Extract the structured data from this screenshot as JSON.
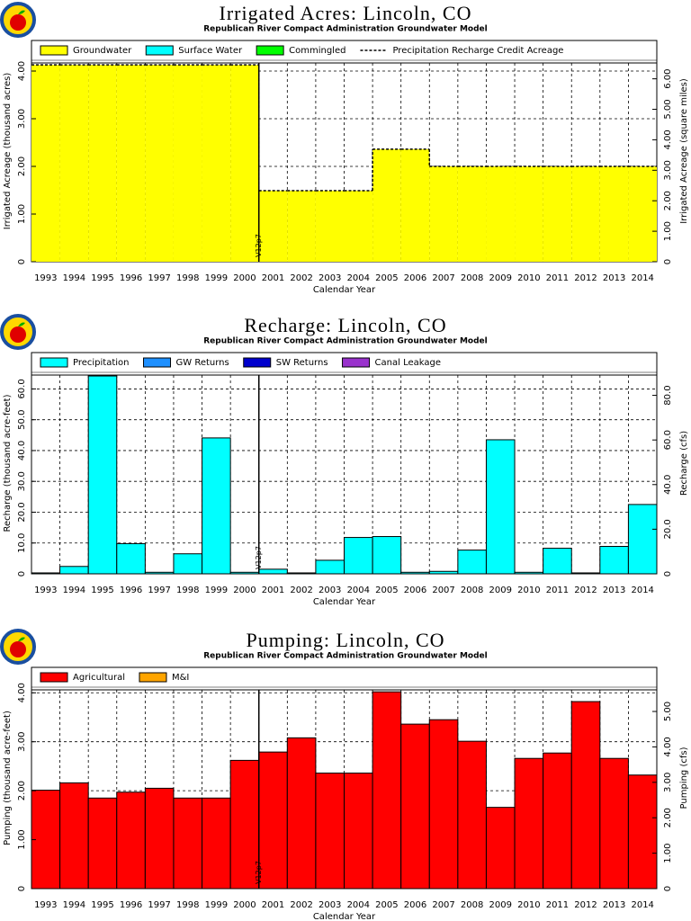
{
  "chart_data": [
    {
      "type": "area",
      "title": "Irrigated Acres: Lincoln, CO",
      "subtitle": "Republican River Compact Administration Groundwater Model",
      "ylabel": "Irrigated Acreage (thousand acres)",
      "y2label": "Irrigated Acreage (square miles)",
      "xlabel": "Calendar Year",
      "categories": [
        "1993",
        "1994",
        "1995",
        "1996",
        "1997",
        "1998",
        "1999",
        "2000",
        "2001",
        "2002",
        "2003",
        "2004",
        "2005",
        "2006",
        "2007",
        "2008",
        "2009",
        "2010",
        "2011",
        "2012",
        "2013",
        "2014"
      ],
      "series": [
        {
          "name": "Groundwater",
          "color": "#ffff00",
          "values": [
            4.13,
            4.13,
            4.13,
            4.13,
            4.13,
            4.13,
            4.13,
            4.13,
            1.49,
            1.49,
            1.49,
            1.49,
            2.36,
            2.36,
            2.0,
            2.0,
            2.0,
            2.0,
            2.0,
            2.0,
            2.0,
            2.0
          ]
        },
        {
          "name": "Surface Water",
          "color": "#00ffff",
          "values": [
            0,
            0,
            0,
            0,
            0,
            0,
            0,
            0,
            0,
            0,
            0,
            0,
            0,
            0,
            0,
            0,
            0,
            0,
            0,
            0,
            0,
            0
          ]
        },
        {
          "name": "Commingled",
          "color": "#00ff00",
          "values": [
            0,
            0,
            0,
            0,
            0,
            0,
            0,
            0,
            0,
            0,
            0,
            0,
            0,
            0,
            0,
            0,
            0,
            0,
            0,
            0,
            0,
            0
          ]
        },
        {
          "name": "Precipitation Recharge Credit Acreage",
          "type": "line",
          "line_style": "dashed",
          "color": "#000000",
          "values": [
            4.13,
            4.13,
            4.13,
            4.13,
            4.13,
            4.13,
            4.13,
            4.13,
            1.49,
            1.49,
            1.49,
            1.49,
            2.36,
            2.36,
            2.0,
            2.0,
            2.0,
            2.0,
            2.0,
            2.0,
            2.0,
            2.0
          ]
        }
      ],
      "ylim": [
        0,
        4.17
      ],
      "yticks": [
        0,
        {
          "value": 1,
          "label": "1.00"
        },
        {
          "value": 2,
          "label": "2.00"
        },
        {
          "value": 3,
          "label": "3.00"
        },
        {
          "value": 4,
          "label": "4.00"
        }
      ],
      "y2lim": [
        0,
        6.52
      ],
      "y2ticks": [
        0,
        {
          "value": 1,
          "label": "1.00"
        },
        {
          "value": 2,
          "label": "2.00"
        },
        {
          "value": 3,
          "label": "3.00"
        },
        {
          "value": 4,
          "label": "4.00"
        },
        {
          "value": 5,
          "label": "5.00"
        },
        {
          "value": 6,
          "label": "6.00"
        }
      ],
      "grid": true,
      "vline": {
        "label": "V12p7",
        "category": "2001"
      }
    },
    {
      "type": "bar",
      "title": "Recharge: Lincoln, CO",
      "subtitle": "Republican River Compact Administration Groundwater Model",
      "ylabel": "Recharge (thousand acre-feet)",
      "y2label": "Recharge (cfs)",
      "xlabel": "Calendar Year",
      "categories": [
        "1993",
        "1994",
        "1995",
        "1996",
        "1997",
        "1998",
        "1999",
        "2000",
        "2001",
        "2002",
        "2003",
        "2004",
        "2005",
        "2006",
        "2007",
        "2008",
        "2009",
        "2010",
        "2011",
        "2012",
        "2013",
        "2014"
      ],
      "series": [
        {
          "name": "Precipitation",
          "color": "#00ffff",
          "values": [
            0.3,
            2.4,
            64.2,
            9.8,
            0.5,
            6.5,
            44.1,
            0.5,
            1.5,
            0.3,
            4.4,
            11.8,
            12.1,
            0.5,
            0.8,
            7.7,
            43.5,
            0.5,
            8.3,
            0.3,
            8.9,
            22.5
          ]
        },
        {
          "name": "GW Returns",
          "color": "#1e90ff",
          "values": [
            0,
            0,
            0,
            0,
            0,
            0,
            0,
            0,
            0,
            0,
            0,
            0,
            0,
            0,
            0,
            0,
            0,
            0,
            0,
            0,
            0,
            0
          ]
        },
        {
          "name": "SW Returns",
          "color": "#0000cd",
          "values": [
            0,
            0,
            0,
            0,
            0,
            0,
            0,
            0,
            0,
            0,
            0,
            0,
            0,
            0,
            0,
            0,
            0,
            0,
            0,
            0,
            0,
            0
          ]
        },
        {
          "name": "Canal Leakage",
          "color": "#9932cc",
          "values": [
            0,
            0,
            0,
            0,
            0,
            0,
            0,
            0,
            0,
            0,
            0,
            0,
            0,
            0,
            0,
            0,
            0,
            0,
            0,
            0,
            0,
            0
          ]
        }
      ],
      "ylim": [
        0,
        64.5
      ],
      "yticks": [
        0,
        {
          "value": 10,
          "label": "10.0"
        },
        {
          "value": 20,
          "label": "20.0"
        },
        {
          "value": 30,
          "label": "30.0"
        },
        {
          "value": 40,
          "label": "40.0"
        },
        {
          "value": 50,
          "label": "50.0"
        },
        {
          "value": 60,
          "label": "60.0"
        }
      ],
      "y2lim": [
        0,
        89.1
      ],
      "y2ticks": [
        0,
        {
          "value": 20,
          "label": "20.0"
        },
        {
          "value": 40,
          "label": "40.0"
        },
        {
          "value": 60,
          "label": "60.0"
        },
        {
          "value": 80,
          "label": "80.0"
        }
      ],
      "grid": true,
      "vline": {
        "label": "V12p7",
        "category": "2001"
      }
    },
    {
      "type": "bar",
      "title": "Pumping: Lincoln, CO",
      "subtitle": "Republican River Compact Administration Groundwater Model",
      "ylabel": "Pumping (thousand acre-feet)",
      "y2label": "Pumping (cfs)",
      "xlabel": "Calendar Year",
      "categories": [
        "1993",
        "1994",
        "1995",
        "1996",
        "1997",
        "1998",
        "1999",
        "2000",
        "2001",
        "2002",
        "2003",
        "2004",
        "2005",
        "2006",
        "2007",
        "2008",
        "2009",
        "2010",
        "2011",
        "2012",
        "2013",
        "2014"
      ],
      "series": [
        {
          "name": "Agricultural",
          "color": "#ff0000",
          "values": [
            2.01,
            2.16,
            1.85,
            1.97,
            2.05,
            1.85,
            1.85,
            2.62,
            2.79,
            3.08,
            2.36,
            2.36,
            4.02,
            3.36,
            3.45,
            3.01,
            1.66,
            2.66,
            2.77,
            3.82,
            2.66,
            2.32
          ]
        },
        {
          "name": "M&I",
          "color": "#ffa500",
          "values": [
            0,
            0,
            0,
            0,
            0,
            0,
            0,
            0,
            0,
            0,
            0,
            0,
            0,
            0,
            0,
            0,
            0,
            0,
            0,
            0,
            0,
            0
          ]
        }
      ],
      "ylim": [
        0,
        4.06
      ],
      "yticks": [
        0,
        {
          "value": 1,
          "label": "1.00"
        },
        {
          "value": 2,
          "label": "2.00"
        },
        {
          "value": 3,
          "label": "3.00"
        },
        {
          "value": 4,
          "label": "4.00"
        }
      ],
      "y2lim": [
        0,
        5.61
      ],
      "y2ticks": [
        0,
        {
          "value": 1,
          "label": "1.00"
        },
        {
          "value": 2,
          "label": "2.00"
        },
        {
          "value": 3,
          "label": "3.00"
        },
        {
          "value": 4,
          "label": "4.00"
        },
        {
          "value": 5,
          "label": "5.00"
        }
      ],
      "grid": true,
      "vline": {
        "label": "V12p7",
        "category": "2001"
      }
    }
  ]
}
